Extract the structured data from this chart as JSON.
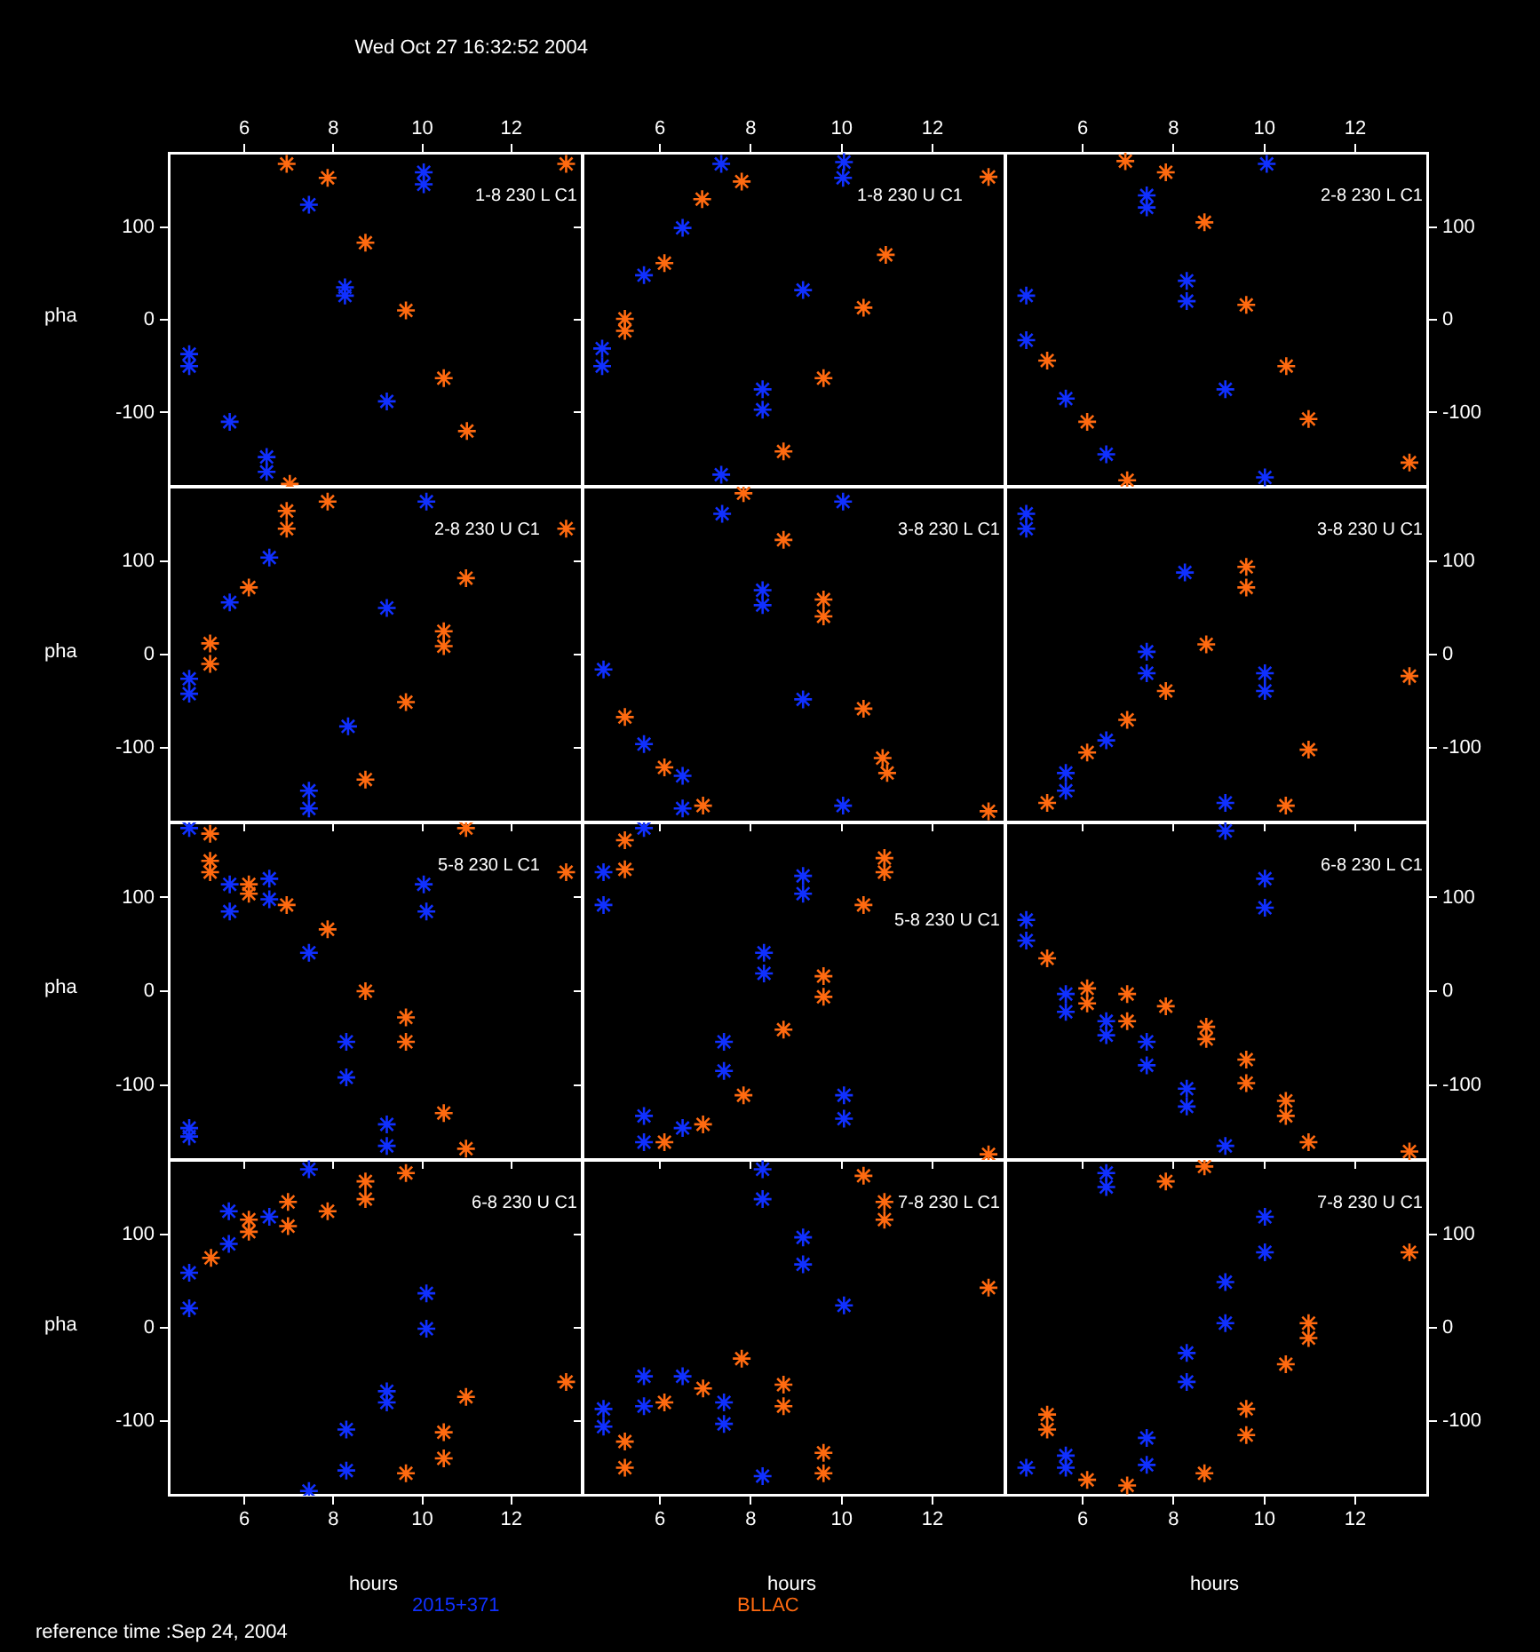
{
  "chart_data": [
    {
      "type": "scatter",
      "title": "1-8 230 L C1",
      "ylabel": "pha",
      "annotations": [
        "Wed Oct 27 16:32:52 2004"
      ],
      "xlim": [
        4.3,
        13.6
      ],
      "ylim": [
        -180,
        180
      ],
      "xticks": [
        6,
        8,
        10,
        12
      ],
      "yticks": [
        -100,
        0,
        100
      ],
      "marker": "cross",
      "series": [
        {
          "color": "#1030ff",
          "x": [
            4.76,
            4.76,
            5.67,
            6.5,
            6.5,
            7.45,
            8.26,
            8.26,
            9.2,
            10.03,
            10.03
          ],
          "values": [
            -37,
            -50,
            -110,
            -164,
            -148,
            124,
            35,
            26,
            -88,
            159,
            146
          ]
        },
        {
          "color": "#ff6a10",
          "x": [
            6.95,
            7.87,
            8.72,
            9.63,
            10.48,
            11.0,
            13.23,
            7.02
          ],
          "values": [
            168,
            153,
            83,
            10,
            -63,
            -120,
            168,
            -177
          ]
        }
      ]
    },
    {
      "type": "scatter",
      "title": "1-8 230 U C1",
      "tick_labels": "x",
      "xlim": [
        4.3,
        13.6
      ],
      "ylim": [
        -180,
        180
      ],
      "xticks": [
        6,
        8,
        10,
        12
      ],
      "yticks": [
        -100,
        0,
        100
      ],
      "marker": "cross",
      "series": [
        {
          "color": "#1030ff",
          "x": [
            4.73,
            4.73,
            5.65,
            6.5,
            7.35,
            7.35,
            8.26,
            8.26,
            9.15,
            10.03,
            10.05
          ],
          "values": [
            -31,
            -50,
            48,
            99,
            168,
            -167,
            -75,
            -97,
            32,
            153,
            170
          ]
        },
        {
          "color": "#ff6a10",
          "x": [
            5.23,
            5.23,
            6.1,
            6.93,
            7.8,
            8.72,
            9.6,
            10.48,
            10.97,
            13.23
          ],
          "values": [
            1,
            -12,
            61,
            130,
            149,
            -142,
            -63,
            13,
            70,
            154
          ]
        }
      ]
    },
    {
      "type": "scatter",
      "title": "2-8 230 L C1",
      "xlim": [
        4.3,
        13.6
      ],
      "ylim": [
        -180,
        180
      ],
      "xticks": [
        6,
        8,
        10,
        12
      ],
      "yticks": [
        -100,
        0,
        100
      ],
      "marker": "cross",
      "series": [
        {
          "color": "#1030ff",
          "x": [
            4.76,
            4.76,
            5.63,
            6.52,
            7.41,
            7.41,
            8.29,
            8.29,
            9.14,
            10.05,
            10.01
          ],
          "values": [
            26,
            -22,
            -85,
            -145,
            134,
            121,
            42,
            20,
            -75,
            168,
            -170
          ]
        },
        {
          "color": "#ff6a10",
          "x": [
            5.22,
            6.1,
            6.98,
            7.83,
            8.68,
            9.6,
            10.48,
            10.97,
            13.19,
            6.94
          ],
          "values": [
            -44,
            -110,
            -173,
            159,
            105,
            16,
            -50,
            -107,
            -154,
            171
          ]
        }
      ]
    },
    {
      "type": "scatter",
      "title": "2-8 230 U C1",
      "ylabel": "pha",
      "tick_labels": "y",
      "xlim": [
        4.3,
        13.6
      ],
      "ylim": [
        -180,
        180
      ],
      "xticks": [
        6,
        8,
        10,
        12
      ],
      "yticks": [
        -100,
        0,
        100
      ],
      "marker": "cross",
      "series": [
        {
          "color": "#1030ff",
          "x": [
            4.76,
            4.76,
            5.67,
            6.56,
            7.45,
            7.45,
            8.33,
            9.2,
            10.09
          ],
          "values": [
            -26,
            -42,
            56,
            104,
            -146,
            -165,
            -77,
            50,
            164
          ]
        },
        {
          "color": "#ff6a10",
          "x": [
            5.23,
            5.23,
            6.1,
            6.95,
            6.95,
            7.87,
            8.72,
            9.63,
            10.48,
            10.48,
            10.98,
            13.23
          ],
          "values": [
            12,
            -10,
            72,
            154,
            135,
            164,
            -134,
            -51,
            25,
            9,
            82,
            135
          ]
        }
      ]
    },
    {
      "type": "scatter",
      "title": "3-8 230 L C1",
      "tick_labels": false,
      "xlim": [
        4.3,
        13.6
      ],
      "ylim": [
        -180,
        180
      ],
      "xticks": [
        6,
        8,
        10,
        12
      ],
      "yticks": [
        -100,
        0,
        100
      ],
      "marker": "cross",
      "series": [
        {
          "color": "#1030ff",
          "x": [
            4.76,
            5.65,
            6.5,
            6.5,
            7.37,
            8.26,
            8.26,
            9.15,
            10.03,
            10.03
          ],
          "values": [
            -16,
            -96,
            -130,
            -165,
            151,
            69,
            53,
            -48,
            -162,
            164
          ]
        },
        {
          "color": "#ff6a10",
          "x": [
            5.23,
            6.1,
            6.95,
            7.84,
            8.72,
            9.6,
            9.6,
            10.48,
            10.9,
            11.0,
            13.23
          ],
          "values": [
            -67,
            -121,
            -162,
            173,
            123,
            59,
            41,
            -58,
            -111,
            -127,
            -168
          ]
        }
      ]
    },
    {
      "type": "scatter",
      "title": "3-8 230 U C1",
      "tick_labels": "y",
      "xlim": [
        4.3,
        13.6
      ],
      "ylim": [
        -180,
        180
      ],
      "xticks": [
        6,
        8,
        10,
        12
      ],
      "yticks": [
        -100,
        0,
        100
      ],
      "marker": "cross",
      "series": [
        {
          "color": "#1030ff",
          "x": [
            4.76,
            4.76,
            5.63,
            5.63,
            6.52,
            7.41,
            7.41,
            8.25,
            9.14,
            10.01,
            10.01
          ],
          "values": [
            151,
            135,
            -127,
            -146,
            -92,
            3,
            -20,
            88,
            -159,
            -20,
            -39
          ]
        },
        {
          "color": "#ff6a10",
          "x": [
            5.22,
            6.1,
            6.98,
            7.83,
            8.72,
            9.6,
            9.6,
            10.47,
            10.97,
            13.19
          ],
          "values": [
            -159,
            -105,
            -70,
            -39,
            11,
            94,
            72,
            -162,
            -102,
            -23
          ]
        }
      ]
    },
    {
      "type": "scatter",
      "title": "5-8 230 L C1",
      "ylabel": "pha",
      "tick_labels": "y",
      "xlim": [
        4.3,
        13.6
      ],
      "ylim": [
        -180,
        180
      ],
      "xticks": [
        6,
        8,
        10,
        12
      ],
      "yticks": [
        -100,
        0,
        100
      ],
      "marker": "cross",
      "series": [
        {
          "color": "#1030ff",
          "x": [
            4.76,
            4.76,
            5.67,
            5.67,
            6.56,
            6.56,
            7.45,
            8.29,
            8.29,
            9.2,
            9.2,
            10.03,
            10.09,
            4.76
          ],
          "values": [
            -155,
            -146,
            114,
            85,
            120,
            98,
            41,
            -54,
            -92,
            -142,
            -165,
            114,
            85,
            174
          ]
        },
        {
          "color": "#ff6a10",
          "x": [
            5.23,
            5.23,
            5.23,
            6.1,
            6.1,
            6.95,
            7.87,
            8.72,
            9.63,
            9.63,
            10.48,
            10.98,
            10.98,
            13.23
          ],
          "values": [
            168,
            139,
            127,
            114,
            104,
            92,
            66,
            0,
            -28,
            -54,
            -130,
            -168,
            174,
            127
          ]
        }
      ]
    },
    {
      "type": "scatter",
      "title": "5-8 230 U C1",
      "tick_labels": false,
      "xlim": [
        4.3,
        13.6
      ],
      "ylim": [
        -180,
        180
      ],
      "xticks": [
        6,
        8,
        10,
        12
      ],
      "yticks": [
        -100,
        0,
        100
      ],
      "marker": "cross",
      "series": [
        {
          "color": "#1030ff",
          "x": [
            4.76,
            4.76,
            5.65,
            5.65,
            6.5,
            7.41,
            7.41,
            8.29,
            8.29,
            9.15,
            9.15,
            10.05,
            10.05,
            5.65
          ],
          "values": [
            127,
            92,
            -133,
            -161,
            -146,
            -54,
            -85,
            41,
            19,
            123,
            104,
            -111,
            -136,
            174
          ]
        },
        {
          "color": "#ff6a10",
          "x": [
            5.23,
            5.23,
            6.1,
            6.95,
            7.84,
            8.72,
            9.6,
            9.6,
            10.48,
            10.94,
            10.94,
            13.23
          ],
          "values": [
            161,
            130,
            -161,
            -142,
            -111,
            -41,
            16,
            -6,
            92,
            142,
            127,
            -174
          ]
        }
      ]
    },
    {
      "type": "scatter",
      "title": "6-8 230 L C1",
      "tick_labels": "y",
      "xlim": [
        4.3,
        13.6
      ],
      "ylim": [
        -180,
        180
      ],
      "xticks": [
        6,
        8,
        10,
        12
      ],
      "yticks": [
        -100,
        0,
        100
      ],
      "marker": "cross",
      "series": [
        {
          "color": "#1030ff",
          "x": [
            4.76,
            4.76,
            5.63,
            5.63,
            6.52,
            6.52,
            7.41,
            7.41,
            8.29,
            8.29,
            9.14,
            10.01,
            10.01,
            9.14
          ],
          "values": [
            76,
            54,
            -3,
            -22,
            -32,
            -47,
            -54,
            -79,
            -104,
            -123,
            -165,
            120,
            89,
            171
          ]
        },
        {
          "color": "#ff6a10",
          "x": [
            5.22,
            6.1,
            6.1,
            6.98,
            6.98,
            7.83,
            8.72,
            8.72,
            9.6,
            9.6,
            10.47,
            10.47,
            10.97,
            13.19
          ],
          "values": [
            35,
            3,
            -13,
            -3,
            -32,
            -16,
            -38,
            -51,
            -73,
            -98,
            -117,
            -133,
            -161,
            -171
          ]
        }
      ]
    },
    {
      "type": "scatter",
      "title": "6-8 230 U C1",
      "ylabel": "pha",
      "xlabel": "hours",
      "legend": "bottom",
      "annotations": [
        "reference time :Sep 24, 2004"
      ],
      "xlim": [
        4.3,
        13.6
      ],
      "ylim": [
        -180,
        180
      ],
      "xticks": [
        6,
        8,
        10,
        12
      ],
      "yticks": [
        -100,
        0,
        100
      ],
      "marker": "cross",
      "series": [
        {
          "name": "2015+371",
          "color": "#1030ff",
          "x": [
            4.76,
            4.76,
            5.65,
            5.65,
            6.56,
            7.45,
            7.45,
            8.29,
            8.29,
            9.2,
            9.2,
            10.09,
            10.09
          ],
          "values": [
            59,
            21,
            125,
            90,
            119,
            170,
            -175,
            -109,
            -153,
            -68,
            -80,
            37,
            -1
          ]
        },
        {
          "name": "BLLAC",
          "color": "#ff6a10",
          "x": [
            5.25,
            6.1,
            6.1,
            6.98,
            6.98,
            7.87,
            8.72,
            8.72,
            9.63,
            9.63,
            10.48,
            10.48,
            10.98,
            13.23
          ],
          "values": [
            75,
            103,
            116,
            109,
            135,
            125,
            138,
            157,
            166,
            -156,
            -112,
            -140,
            -74,
            -58
          ]
        }
      ]
    },
    {
      "type": "scatter",
      "title": "7-8 230 L C1",
      "xlabel": "hours",
      "tick_labels": "x",
      "xlim": [
        4.3,
        13.6
      ],
      "ylim": [
        -180,
        180
      ],
      "xticks": [
        6,
        8,
        10,
        12
      ],
      "yticks": [
        -100,
        0,
        100
      ],
      "marker": "cross",
      "series": [
        {
          "color": "#1030ff",
          "x": [
            4.76,
            4.76,
            5.65,
            5.65,
            6.5,
            7.41,
            7.41,
            8.26,
            8.26,
            8.26,
            9.15,
            9.15,
            10.05
          ],
          "values": [
            -87,
            -106,
            -52,
            -84,
            -52,
            -80,
            -103,
            170,
            138,
            -159,
            97,
            68,
            24
          ]
        },
        {
          "color": "#ff6a10",
          "x": [
            5.23,
            5.23,
            6.1,
            6.95,
            7.8,
            8.72,
            8.72,
            9.6,
            9.6,
            10.48,
            10.94,
            10.94,
            13.23
          ],
          "values": [
            -122,
            -150,
            -80,
            -65,
            -33,
            -61,
            -84,
            -134,
            -156,
            163,
            135,
            116,
            43
          ]
        }
      ]
    },
    {
      "type": "scatter",
      "title": "7-8 230 U C1",
      "xlabel": "hours",
      "xlim": [
        4.3,
        13.6
      ],
      "ylim": [
        -180,
        180
      ],
      "xticks": [
        6,
        8,
        10,
        12
      ],
      "yticks": [
        -100,
        0,
        100
      ],
      "marker": "cross",
      "series": [
        {
          "color": "#1030ff",
          "x": [
            4.76,
            5.63,
            5.63,
            6.52,
            6.52,
            7.41,
            7.41,
            8.29,
            8.29,
            9.14,
            9.14,
            10.01,
            10.01
          ],
          "values": [
            -150,
            -150,
            -137,
            166,
            151,
            -118,
            -147,
            -27,
            -58,
            49,
            5,
            119,
            81
          ]
        },
        {
          "color": "#ff6a10",
          "x": [
            5.22,
            5.22,
            6.1,
            6.98,
            7.83,
            8.68,
            8.68,
            9.6,
            9.6,
            10.47,
            10.97,
            10.97,
            13.19
          ],
          "values": [
            -93,
            -109,
            -163,
            -169,
            157,
            -156,
            173,
            -87,
            -115,
            -39,
            5,
            -11,
            81
          ]
        }
      ]
    }
  ]
}
